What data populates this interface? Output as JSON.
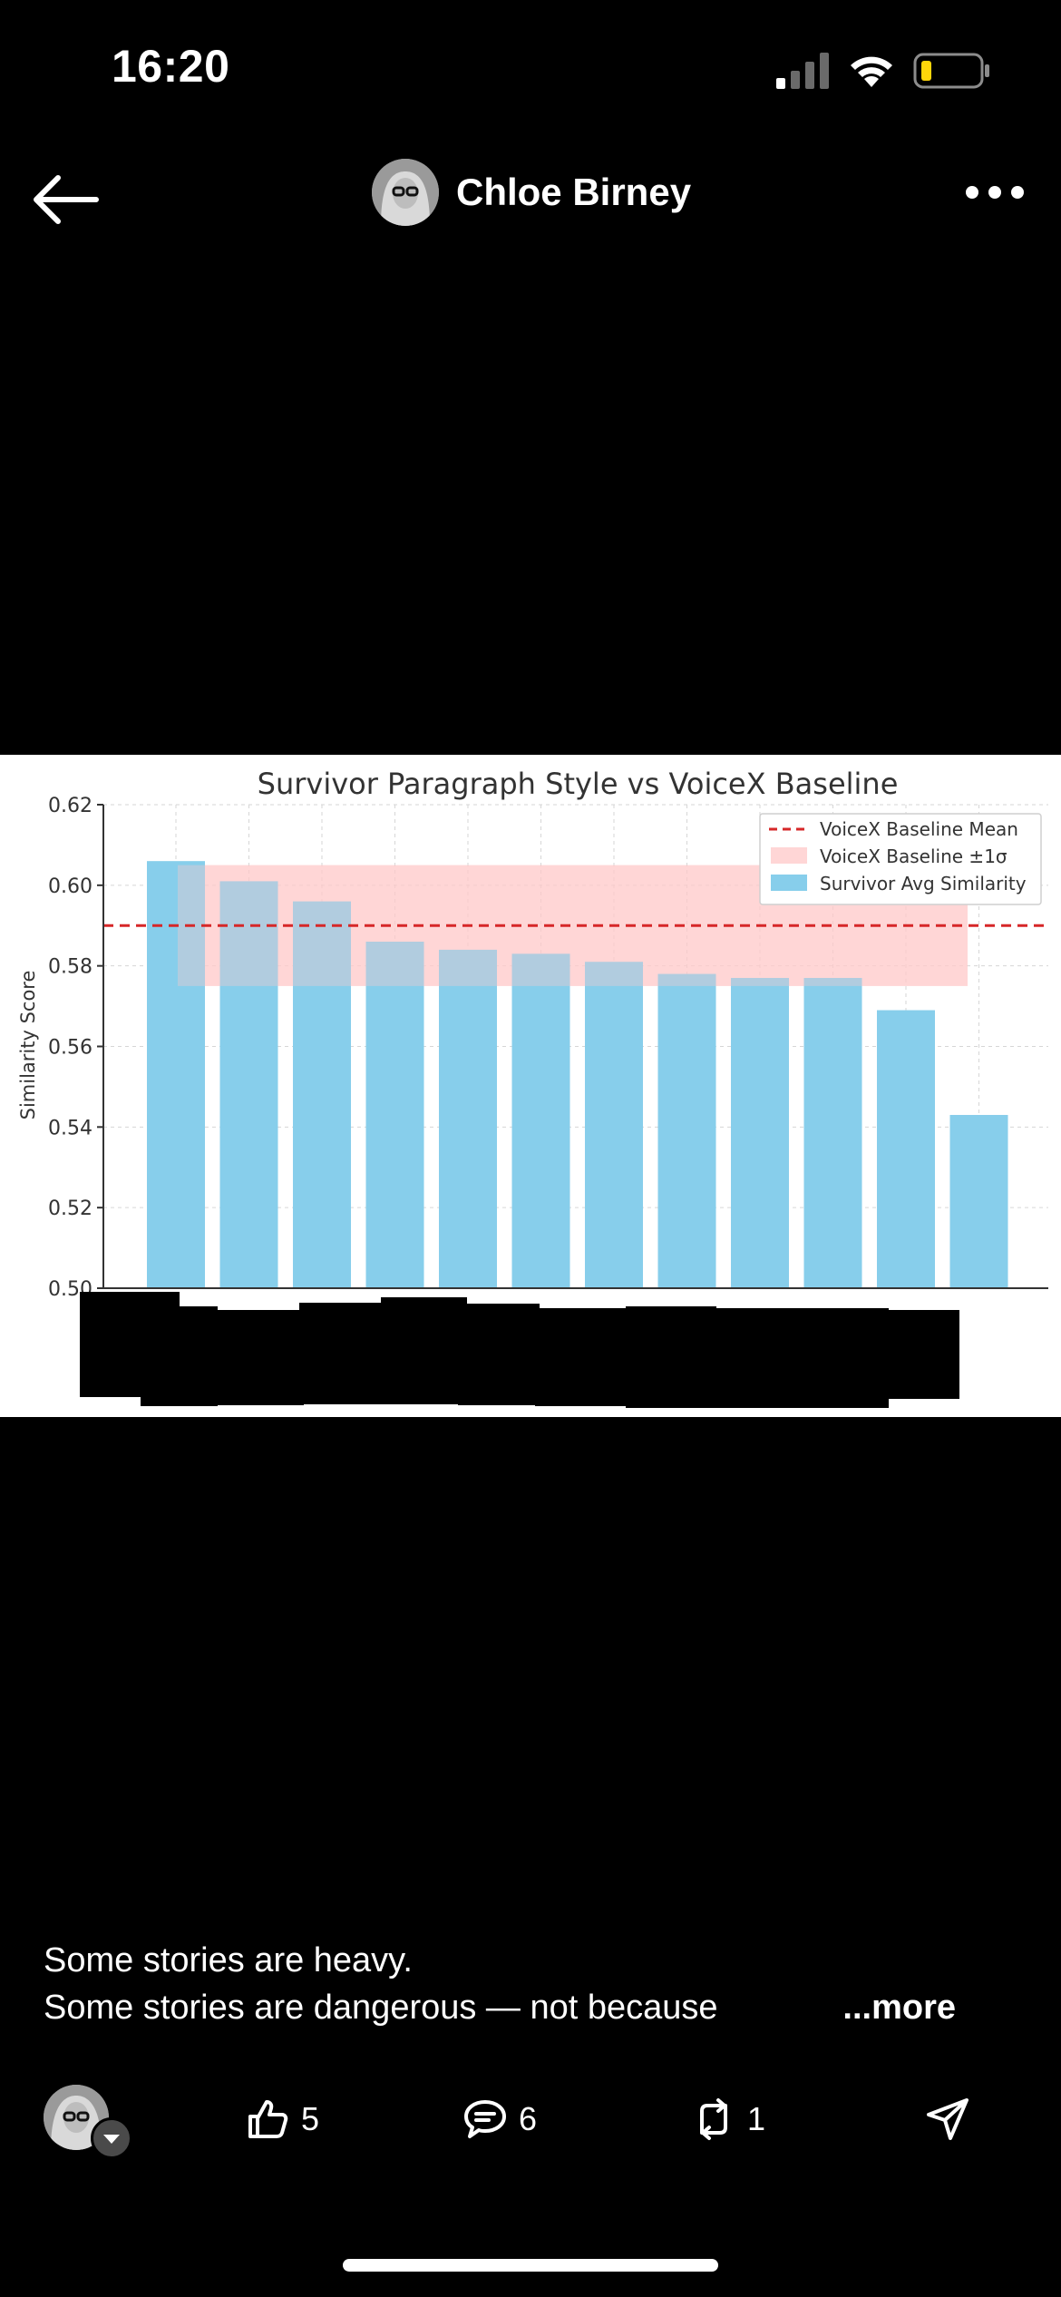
{
  "status": {
    "time": "16:20"
  },
  "header": {
    "author": "Chloe Birney"
  },
  "chart_data": {
    "type": "bar",
    "title": "Survivor Paragraph Style vs VoiceX Baseline",
    "ylabel": "Similarity Score",
    "xlabel": "",
    "ylim": [
      0.5,
      0.62
    ],
    "yticks": [
      "0.50",
      "0.52",
      "0.54",
      "0.56",
      "0.58",
      "0.60",
      "0.62"
    ],
    "grid": true,
    "legend_position": "top-right",
    "legend": [
      "VoiceX Baseline Mean",
      "VoiceX Baseline ±1σ",
      "Survivor Avg Similarity"
    ],
    "categories": [
      "",
      "",
      "",
      "",
      "",
      "",
      "",
      "",
      "",
      "",
      "",
      ""
    ],
    "values": [
      0.606,
      0.601,
      0.596,
      0.586,
      0.584,
      0.583,
      0.581,
      0.578,
      0.577,
      0.577,
      0.569,
      0.543
    ],
    "baseline_mean": 0.59,
    "baseline_band": [
      0.575,
      0.605
    ],
    "bar_color": "#87CEEB",
    "band_color": "#FFC8C8",
    "mean_color": "#D62728"
  },
  "caption": {
    "line1": "Some stories are heavy.",
    "line2": "Some stories are dangerous — not because",
    "more": "...more"
  },
  "actions": {
    "likes": "5",
    "comments": "6",
    "reposts": "1"
  }
}
